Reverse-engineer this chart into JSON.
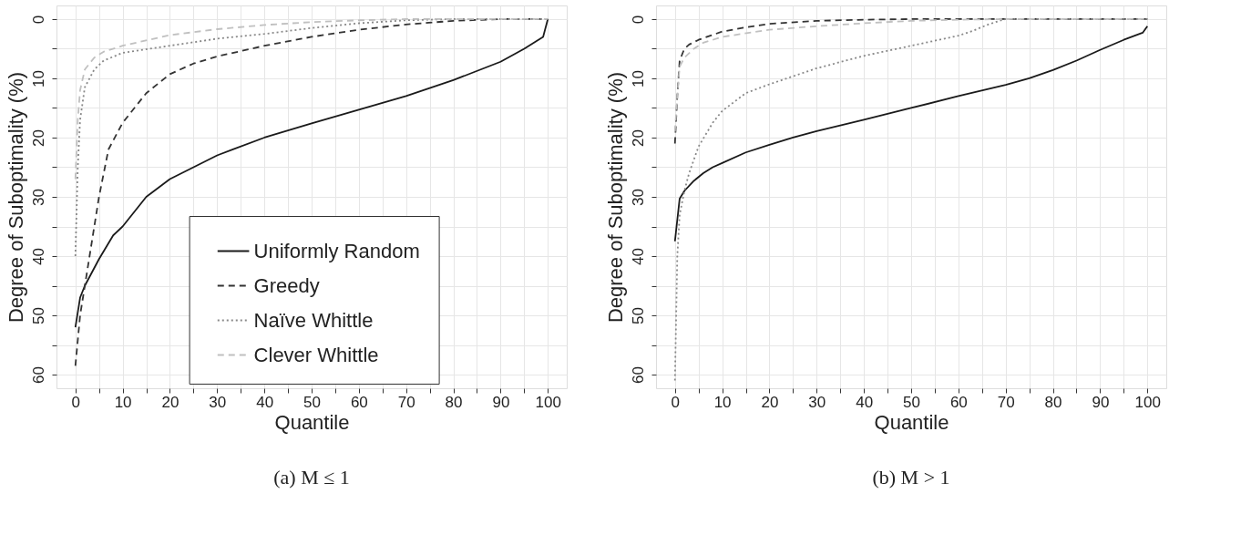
{
  "chart_data": [
    {
      "type": "line",
      "title": "(a) M ≤ 1",
      "xlabel": "Quantile",
      "ylabel": "Degree of Suboptimality (%)",
      "xlim": [
        -4,
        104
      ],
      "ylim": [
        62.3,
        -2.3
      ],
      "xticks": [
        0,
        {
          "value": 5,
          "label": null
        },
        10,
        {
          "value": 15,
          "label": null
        },
        20,
        {
          "value": 25,
          "label": null
        },
        30,
        {
          "value": 35,
          "label": null
        },
        40,
        {
          "value": 45,
          "label": null
        },
        50,
        {
          "value": 55,
          "label": null
        },
        60,
        {
          "value": 65,
          "label": null
        },
        70,
        {
          "value": 75,
          "label": null
        },
        80,
        {
          "value": 85,
          "label": null
        },
        90,
        {
          "value": 95,
          "label": null
        },
        100
      ],
      "yticks": [
        0,
        {
          "value": 5,
          "label": null
        },
        10,
        {
          "value": 15,
          "label": null
        },
        20,
        {
          "value": 25,
          "label": null
        },
        30,
        {
          "value": 35,
          "label": null
        },
        40,
        {
          "value": 45,
          "label": null
        },
        50,
        {
          "value": 55,
          "label": null
        },
        60
      ],
      "grid": true,
      "legend": "bottom",
      "marker": "none",
      "series": [
        {
          "name": "Uniformly Random",
          "color": "#1a1a1a",
          "line_style": "solid",
          "x": [
            0,
            1,
            2,
            5,
            8,
            10,
            15,
            20,
            25,
            30,
            40,
            50,
            60,
            70,
            80,
            90,
            95,
            99,
            100
          ],
          "values": [
            52,
            47,
            45,
            40.5,
            36.5,
            35,
            30,
            27,
            25,
            23,
            20,
            17.6,
            15.3,
            13,
            10.3,
            7.2,
            5,
            3,
            0
          ]
        },
        {
          "name": "Greedy",
          "color": "#333333",
          "line_style": "dashed",
          "x": [
            0,
            1,
            3,
            5,
            7,
            10,
            15,
            20,
            25,
            30,
            40,
            50,
            60,
            70,
            80,
            90,
            100
          ],
          "values": [
            58.5,
            50,
            40,
            30,
            22,
            17.5,
            12.5,
            9.3,
            7.5,
            6.3,
            4.5,
            3,
            1.8,
            0.9,
            0.3,
            0,
            0
          ]
        },
        {
          "name": "Naïve Whittle",
          "color": "#888888",
          "line_style": "dotted",
          "x": [
            0,
            0.5,
            1,
            2,
            4,
            6,
            10,
            20,
            30,
            40,
            50,
            60,
            70,
            80,
            100
          ],
          "values": [
            40,
            25,
            17,
            11.5,
            8.5,
            7,
            5.7,
            4.5,
            3.3,
            2.5,
            1.5,
            0.7,
            0.2,
            0,
            0
          ]
        },
        {
          "name": "Clever Whittle",
          "color": "#c0c0c0",
          "line_style": "dashed",
          "x": [
            0,
            0.5,
            1,
            2,
            4,
            6,
            10,
            20,
            30,
            40,
            50,
            60,
            70,
            100
          ],
          "values": [
            27,
            17,
            12,
            8.5,
            6.5,
            5.5,
            4.5,
            2.7,
            1.7,
            1,
            0.5,
            0.2,
            0,
            0
          ]
        }
      ]
    },
    {
      "type": "line",
      "title": "(b) M > 1",
      "xlabel": "Quantile",
      "ylabel": "Degree of Suboptimality (%)",
      "xlim": [
        -4,
        104
      ],
      "ylim": [
        62.3,
        -2.3
      ],
      "xticks": [
        0,
        {
          "value": 5,
          "label": null
        },
        10,
        {
          "value": 15,
          "label": null
        },
        20,
        {
          "value": 25,
          "label": null
        },
        30,
        {
          "value": 35,
          "label": null
        },
        40,
        {
          "value": 45,
          "label": null
        },
        50,
        {
          "value": 55,
          "label": null
        },
        60,
        {
          "value": 65,
          "label": null
        },
        70,
        {
          "value": 75,
          "label": null
        },
        80,
        {
          "value": 85,
          "label": null
        },
        90,
        {
          "value": 95,
          "label": null
        },
        100
      ],
      "yticks": [
        0,
        {
          "value": 5,
          "label": null
        },
        10,
        {
          "value": 15,
          "label": null
        },
        20,
        {
          "value": 25,
          "label": null
        },
        30,
        {
          "value": 35,
          "label": null
        },
        40,
        {
          "value": 45,
          "label": null
        },
        50,
        {
          "value": 55,
          "label": null
        },
        60
      ],
      "grid": true,
      "legend": "bottom",
      "marker": "none",
      "series": [
        {
          "name": "Uniformly Random",
          "color": "#1a1a1a",
          "line_style": "solid",
          "x": [
            0,
            1,
            2,
            4,
            6,
            8,
            10,
            15,
            20,
            25,
            30,
            40,
            50,
            60,
            70,
            75,
            80,
            85,
            90,
            95,
            99,
            100
          ],
          "values": [
            37.5,
            30.3,
            29,
            27.3,
            26,
            25,
            24.3,
            22.5,
            21.2,
            20,
            18.9,
            17,
            15,
            13,
            11.1,
            10,
            8.6,
            7,
            5.2,
            3.5,
            2.3,
            1.2
          ]
        },
        {
          "name": "Greedy",
          "color": "#333333",
          "line_style": "dashed",
          "x": [
            0,
            0.5,
            1,
            2,
            3,
            5,
            10,
            15,
            20,
            30,
            40,
            50,
            100
          ],
          "values": [
            21,
            13,
            7,
            5,
            4.3,
            3.5,
            2.1,
            1.4,
            0.8,
            0.3,
            0.1,
            0,
            0
          ]
        },
        {
          "name": "Naïve Whittle",
          "color": "#888888",
          "line_style": "dotted",
          "x": [
            0,
            0.5,
            1,
            2,
            3,
            5,
            8,
            10,
            15,
            20,
            30,
            40,
            50,
            60,
            63,
            66,
            69,
            70,
            100
          ],
          "values": [
            61,
            40,
            33,
            29,
            26,
            21.5,
            17.5,
            15.5,
            12.5,
            11,
            8.3,
            6.2,
            4.5,
            2.8,
            2,
            1,
            0.2,
            0,
            0
          ]
        },
        {
          "name": "Clever Whittle",
          "color": "#c0c0c0",
          "line_style": "dashed",
          "x": [
            0,
            0.5,
            1,
            2,
            4,
            6,
            10,
            20,
            30,
            40,
            50,
            60,
            70,
            100
          ],
          "values": [
            19,
            13,
            8,
            6.5,
            5,
            4,
            3,
            1.8,
            1.2,
            0.7,
            0.3,
            0.1,
            0,
            0
          ]
        }
      ]
    }
  ]
}
